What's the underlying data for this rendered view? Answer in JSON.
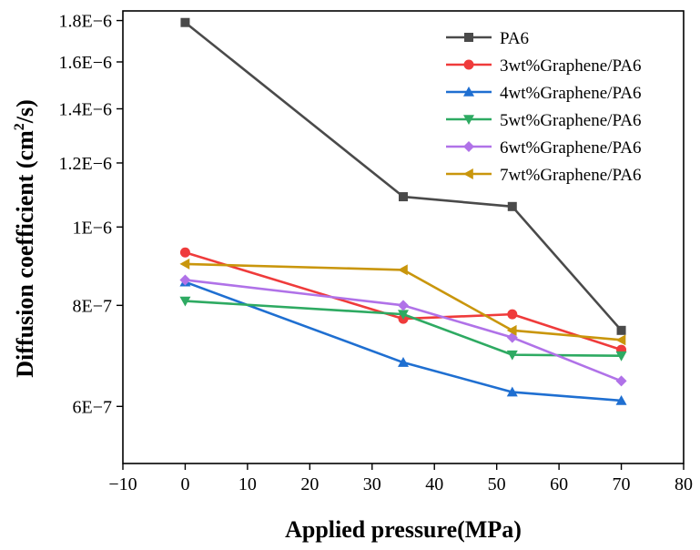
{
  "chart_data": {
    "type": "line",
    "title": "",
    "xlabel": "Applied pressure(MPa)",
    "ylabel_main": "Diffusion coefficient (cm",
    "ylabel_sup": "2",
    "ylabel_tail": "/s)",
    "y_scale": "log",
    "xlim": [
      -10,
      80
    ],
    "ylim": [
      5.1e-07,
      1.85e-06
    ],
    "x_ticks": [
      -10,
      0,
      10,
      20,
      30,
      40,
      50,
      60,
      70,
      80
    ],
    "x_tick_labels": [
      "−10",
      "0",
      "10",
      "20",
      "30",
      "40",
      "50",
      "60",
      "70",
      "80"
    ],
    "y_ticks": [
      6e-07,
      8e-07,
      1e-06,
      1.2e-06,
      1.4e-06,
      1.6e-06,
      1.8e-06
    ],
    "y_tick_labels": [
      "6E−7",
      "8E−7",
      "1E−6",
      "1.2E−6",
      "1.4E−6",
      "1.6E−6",
      "1.8E−6"
    ],
    "x": [
      0,
      35,
      52.5,
      70
    ],
    "legend_position": "top-right",
    "series": [
      {
        "name": "PA6",
        "color": "#4a4a4a",
        "marker": "square",
        "values": [
          1.79e-06,
          1.09e-06,
          1.06e-06,
          7.45e-07
        ]
      },
      {
        "name": "3wt%Graphene/PA6",
        "color": "#ef3b3b",
        "marker": "circle",
        "values": [
          9.3e-07,
          7.7e-07,
          7.8e-07,
          7.05e-07
        ]
      },
      {
        "name": "4wt%Graphene/PA6",
        "color": "#1f6fd1",
        "marker": "triangle-up",
        "values": [
          8.55e-07,
          6.8e-07,
          6.25e-07,
          6.1e-07
        ]
      },
      {
        "name": "5wt%Graphene/PA6",
        "color": "#2eaa62",
        "marker": "triangle-down",
        "values": [
          8.1e-07,
          7.8e-07,
          6.95e-07,
          6.93e-07
        ]
      },
      {
        "name": "6wt%Graphene/PA6",
        "color": "#b072e8",
        "marker": "diamond",
        "values": [
          8.6e-07,
          8e-07,
          7.3e-07,
          6.45e-07
        ]
      },
      {
        "name": "7wt%Graphene/PA6",
        "color": "#c9960c",
        "marker": "triangle-left",
        "values": [
          9e-07,
          8.85e-07,
          7.45e-07,
          7.25e-07
        ]
      }
    ]
  }
}
